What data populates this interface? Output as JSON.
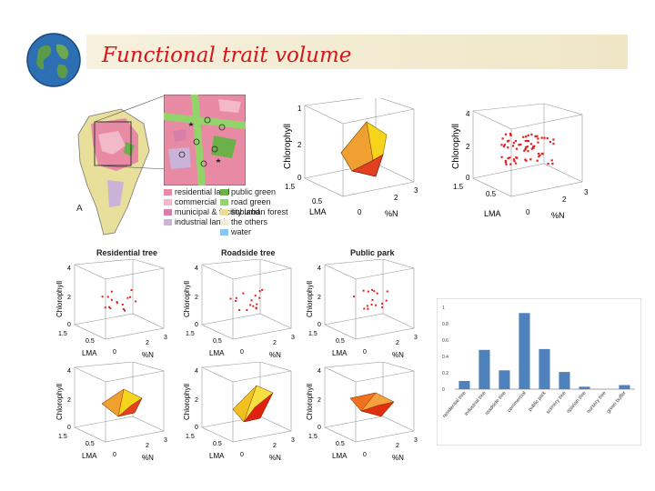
{
  "title": "Functional trait volume",
  "legend": [
    {
      "label": "residential land",
      "color": "#e98aa4"
    },
    {
      "label": "public green",
      "color": "#6cb04a"
    },
    {
      "label": "commercial",
      "color": "#f3b8c9"
    },
    {
      "label": "road green",
      "color": "#93d46a"
    },
    {
      "label": "municipal & facility land",
      "color": "#d67fa8"
    },
    {
      "label": "suburban forest",
      "color": "#e8df9a"
    },
    {
      "label": "industrial land",
      "color": "#c9b3d9"
    },
    {
      "label": "the others",
      "color": "#f2eddc"
    },
    {
      "label": "",
      "color": "#ffffff"
    },
    {
      "label": "water",
      "color": "#8ac6ef"
    }
  ],
  "plot_titles": [
    "Residential tree",
    "Roadside tree",
    "Public park"
  ],
  "axis": {
    "chlorophyll": "Chlorophyll",
    "lma": "LMA",
    "n": "%N"
  },
  "chart_data": {
    "type": "bar",
    "categories": [
      "residential tree",
      "industrial tree",
      "roadside tree",
      "commercial",
      "public park",
      "scenery tree",
      "riparian tree",
      "nursery tree",
      "green buffer"
    ],
    "values": [
      0.1,
      0.48,
      0.23,
      0.93,
      0.49,
      0.21,
      0.03,
      0.0,
      0.05
    ],
    "ylim": [
      0,
      1
    ],
    "yticks": [
      "0",
      "0.2",
      "0.4",
      "0.6",
      "0.8",
      "1"
    ],
    "color": "#4f81bd"
  }
}
